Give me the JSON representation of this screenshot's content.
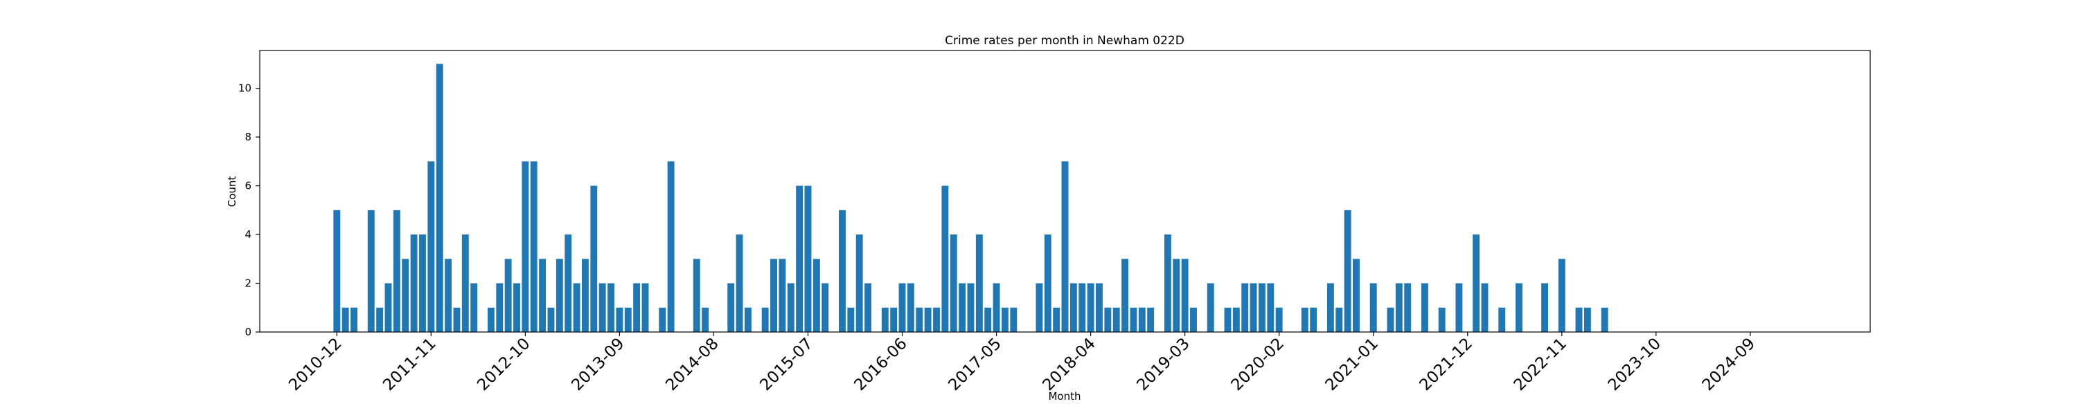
{
  "chart_data": {
    "type": "bar",
    "title": "Crime rates per month in Newham 022D",
    "xlabel": "Month",
    "ylabel": "Count",
    "color": "#1f77b4",
    "x": [
      "2010-12",
      "2011-01",
      "2011-02",
      "2011-04",
      "2011-05",
      "2011-06",
      "2011-07",
      "2011-08",
      "2011-09",
      "2011-10",
      "2011-11",
      "2011-12",
      "2012-01",
      "2012-02",
      "2012-03",
      "2012-04",
      "2012-06",
      "2012-07",
      "2012-08",
      "2012-09",
      "2012-10",
      "2012-11",
      "2012-12",
      "2013-01",
      "2013-02",
      "2013-03",
      "2013-04",
      "2013-05",
      "2013-06",
      "2013-07",
      "2013-08",
      "2013-09",
      "2013-10",
      "2013-11",
      "2013-12",
      "2014-02",
      "2014-03",
      "2014-06",
      "2014-07",
      "2014-10",
      "2014-11",
      "2014-12",
      "2015-02",
      "2015-03",
      "2015-04",
      "2015-05",
      "2015-06",
      "2015-07",
      "2015-08",
      "2015-09",
      "2015-11",
      "2015-12",
      "2016-01",
      "2016-02",
      "2016-04",
      "2016-05",
      "2016-06",
      "2016-07",
      "2016-08",
      "2016-09",
      "2016-10",
      "2016-11",
      "2016-12",
      "2017-01",
      "2017-02",
      "2017-03",
      "2017-04",
      "2017-05",
      "2017-06",
      "2017-07",
      "2017-10",
      "2017-11",
      "2017-12",
      "2018-01",
      "2018-02",
      "2018-03",
      "2018-04",
      "2018-05",
      "2018-06",
      "2018-07",
      "2018-08",
      "2018-09",
      "2018-10",
      "2018-11",
      "2019-01",
      "2019-02",
      "2019-03",
      "2019-04",
      "2019-06",
      "2019-08",
      "2019-09",
      "2019-10",
      "2019-11",
      "2019-12",
      "2020-01",
      "2020-02",
      "2020-05",
      "2020-06",
      "2020-08",
      "2020-09",
      "2020-10",
      "2020-11",
      "2021-01",
      "2021-03",
      "2021-04",
      "2021-05",
      "2021-07",
      "2021-09",
      "2021-11",
      "2022-01",
      "2022-02",
      "2022-04",
      "2022-06",
      "2022-09",
      "2022-11",
      "2023-01",
      "2023-02",
      "2023-04"
    ],
    "values": [
      5,
      1,
      1,
      5,
      1,
      2,
      5,
      3,
      4,
      4,
      7,
      11,
      3,
      1,
      4,
      2,
      1,
      2,
      3,
      2,
      7,
      7,
      3,
      1,
      3,
      4,
      2,
      3,
      6,
      2,
      2,
      1,
      1,
      2,
      2,
      1,
      7,
      3,
      1,
      2,
      4,
      1,
      1,
      3,
      3,
      2,
      6,
      6,
      3,
      2,
      5,
      1,
      4,
      2,
      1,
      1,
      2,
      2,
      1,
      1,
      1,
      6,
      4,
      2,
      2,
      4,
      1,
      2,
      1,
      1,
      2,
      4,
      1,
      7,
      2,
      2,
      2,
      2,
      1,
      1,
      3,
      1,
      1,
      1,
      4,
      3,
      3,
      1,
      2,
      1,
      1,
      2,
      2,
      2,
      2,
      1,
      1,
      1,
      2,
      1,
      5,
      3,
      2,
      1,
      2,
      2,
      2,
      1,
      2,
      4,
      2,
      1,
      2,
      2,
      3,
      1,
      1,
      1
    ],
    "xlim": [
      "2010-03",
      "2025-11"
    ],
    "xticks": [
      "2010-12",
      "2011-11",
      "2012-10",
      "2013-09",
      "2014-08",
      "2015-07",
      "2016-06",
      "2017-05",
      "2018-04",
      "2019-03",
      "2020-02",
      "2021-01",
      "2021-12",
      "2022-11",
      "2023-10",
      "2024-09"
    ],
    "ylim": [
      0,
      11.55
    ],
    "yticks": [
      0,
      2,
      4,
      6,
      8,
      10
    ]
  }
}
